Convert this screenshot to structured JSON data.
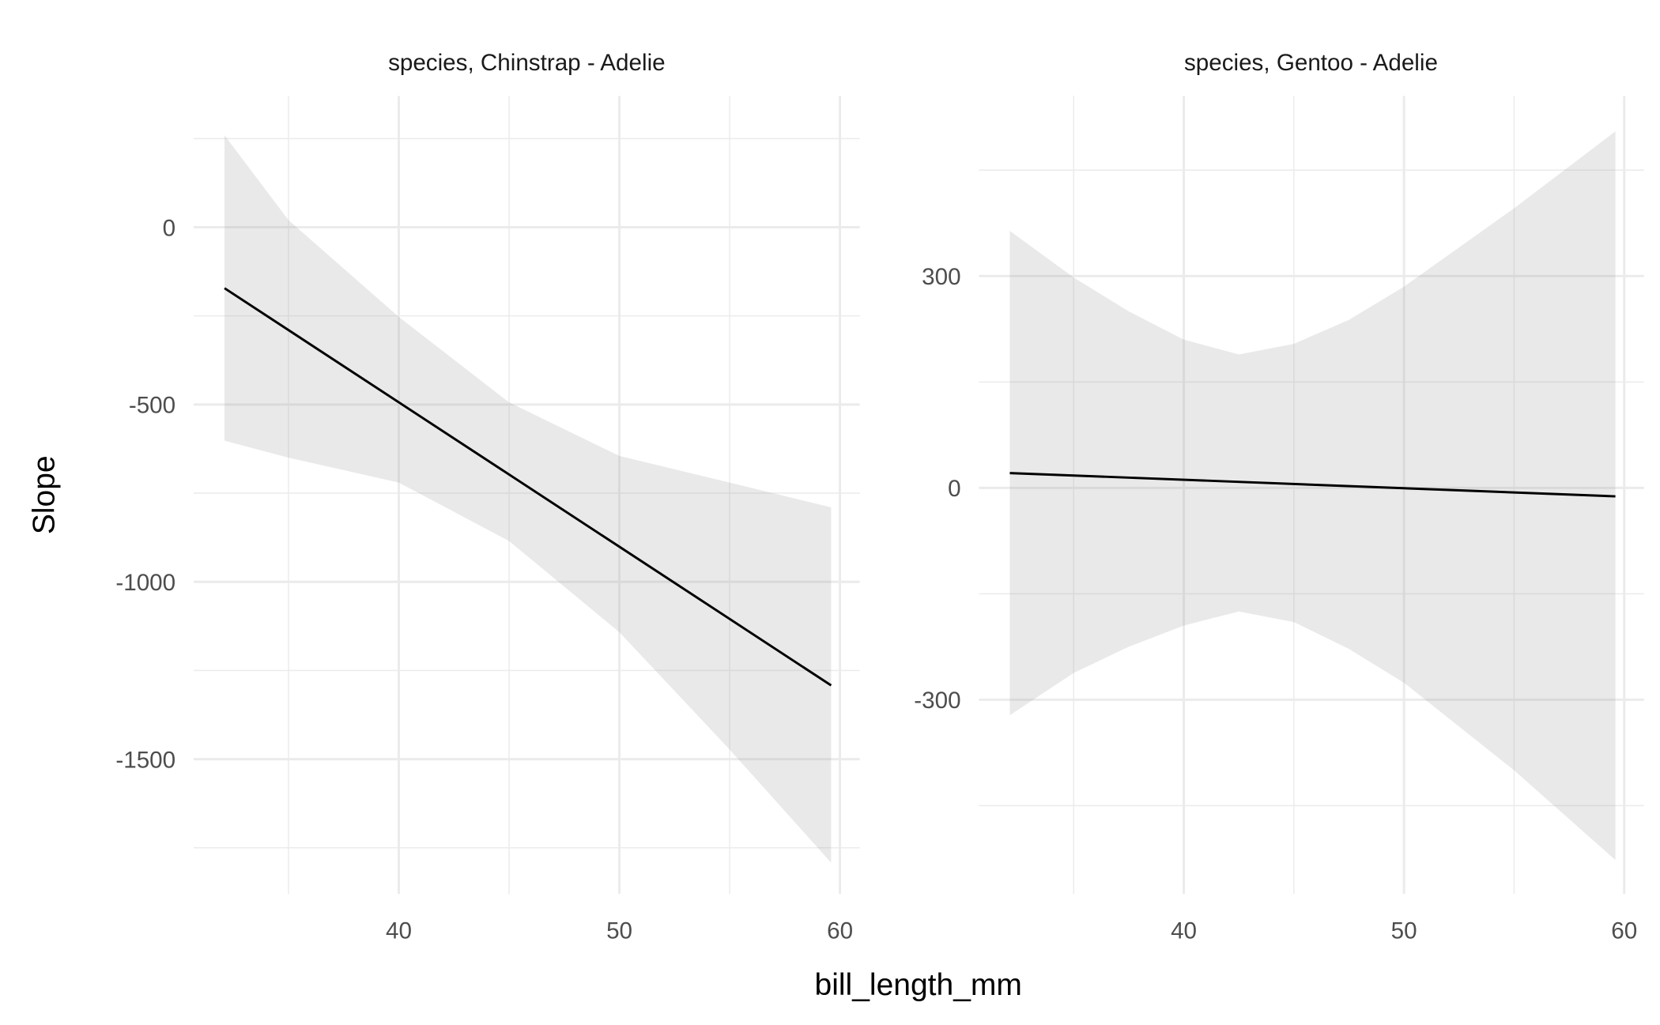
{
  "chart_data": [
    {
      "type": "line",
      "title": "species, Chinstrap - Adelie",
      "xlabel": "bill_length_mm",
      "ylabel": "Slope",
      "xlim": [
        30.7,
        60.9
      ],
      "ylim": [
        -1880,
        370
      ],
      "xticks": [
        40,
        50,
        60
      ],
      "xminor": [
        35,
        45,
        55
      ],
      "yticks": [
        0,
        -500,
        -1000,
        -1500
      ],
      "yminor": [
        250,
        -250,
        -750,
        -1250,
        -1750
      ],
      "grid": true,
      "line": {
        "x": [
          32.1,
          59.6
        ],
        "y": [
          -172,
          -1292
        ]
      },
      "ribbon": {
        "x": [
          32.1,
          35,
          40,
          45,
          50,
          55,
          59.6
        ],
        "upper": [
          259,
          20,
          -253,
          -494,
          -645,
          -720,
          -790
        ],
        "lower": [
          -602,
          -650,
          -720,
          -885,
          -1142,
          -1473,
          -1792
        ]
      }
    },
    {
      "type": "line",
      "title": "species, Gentoo - Adelie",
      "xlabel": "bill_length_mm",
      "ylabel": "Slope",
      "xlim": [
        30.7,
        60.9
      ],
      "ylim": [
        -575,
        555
      ],
      "xticks": [
        40,
        50,
        60
      ],
      "xminor": [
        35,
        45,
        55
      ],
      "yticks": [
        300,
        0,
        -300
      ],
      "yminor": [
        450,
        150,
        -150,
        -450
      ],
      "grid": true,
      "line": {
        "x": [
          32.1,
          59.6
        ],
        "y": [
          21,
          -12
        ]
      },
      "ribbon": {
        "x": [
          32.1,
          35,
          37.5,
          40,
          42.5,
          45,
          47.5,
          50,
          55,
          59.6
        ],
        "upper": [
          364,
          298,
          250,
          210,
          189,
          204,
          238,
          285,
          396,
          505
        ],
        "lower": [
          -322,
          -262,
          -225,
          -195,
          -175,
          -190,
          -228,
          -276,
          -400,
          -527
        ]
      }
    }
  ],
  "labels": {
    "xlabel": "bill_length_mm",
    "ylabel": "Slope"
  }
}
